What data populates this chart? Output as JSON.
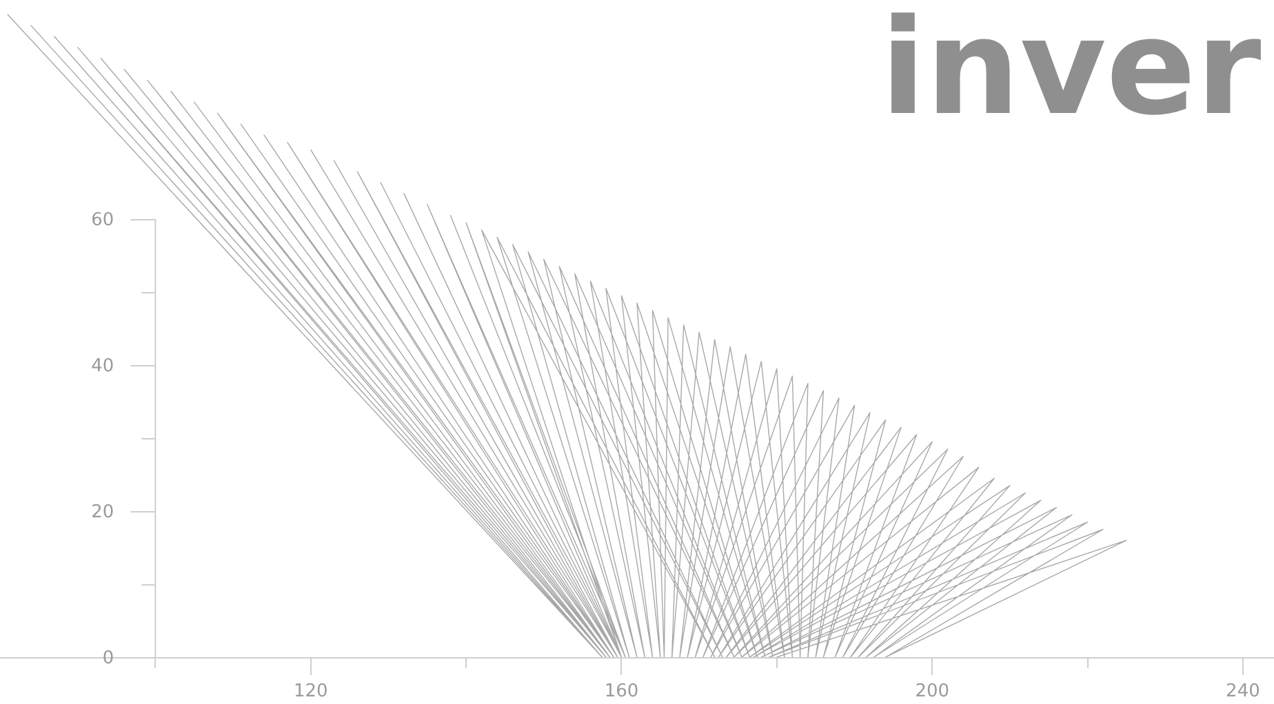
{
  "chart_data": {
    "type": "line",
    "title": "inver",
    "x": [
      81,
      157.5,
      84,
      157.5,
      87,
      157.5,
      90,
      158,
      93,
      158,
      96,
      158,
      99,
      158.5,
      102,
      158.5,
      105,
      158.5,
      108,
      159,
      111,
      159,
      114,
      159,
      117,
      159.5,
      120,
      159.5,
      123,
      159.5,
      126,
      160,
      129,
      160,
      132,
      160,
      135,
      160.5,
      138,
      160.5,
      140,
      160,
      142,
      172,
      144,
      161,
      146,
      173,
      148,
      162,
      150,
      174.5,
      152,
      163,
      154,
      175.5,
      156,
      164,
      158,
      176.5,
      160,
      165,
      162,
      177.5,
      164,
      165.5,
      166,
      178.5,
      168,
      166.5,
      170,
      179.5,
      172,
      167.5,
      174,
      181,
      176,
      168.5,
      178,
      182,
      180,
      169.5,
      182,
      183,
      184,
      170.5,
      186,
      184,
      188,
      171.5,
      190,
      185,
      192,
      172.5,
      194,
      186,
      196,
      173.5,
      198,
      187.5,
      200,
      174.5,
      202,
      188.5,
      204,
      175.5,
      206,
      189.5,
      208,
      176.5,
      210,
      190.5,
      212,
      177,
      214,
      191.5,
      216,
      178,
      218,
      192.5,
      220,
      179,
      222,
      194,
      225,
      180
    ],
    "values": [
      88,
      0,
      86.5,
      0,
      85,
      0,
      83.5,
      0,
      82,
      0,
      80.5,
      0,
      79,
      0,
      77.5,
      0,
      76,
      0,
      74.5,
      0,
      73,
      0,
      71.5,
      0,
      70.5,
      0,
      69.5,
      0,
      68,
      0,
      66.5,
      0,
      65,
      0,
      63.5,
      0,
      62,
      0,
      60.5,
      0,
      59.5,
      0,
      58.5,
      0,
      57.5,
      0,
      56.5,
      0,
      55.5,
      0,
      54.5,
      0,
      53.5,
      0,
      52.5,
      0,
      51.5,
      0,
      50.5,
      0,
      49.5,
      0,
      48.5,
      0,
      47.5,
      0,
      46.5,
      0,
      45.5,
      0,
      44.5,
      0,
      43.5,
      0,
      42.5,
      0,
      41.5,
      0,
      40.5,
      0,
      39.5,
      0,
      38.5,
      0,
      37.5,
      0,
      36.5,
      0,
      35.5,
      0,
      34.5,
      0,
      33.5,
      0,
      32.5,
      0,
      31.5,
      0,
      30.5,
      0,
      29.5,
      0,
      28.5,
      0,
      27.5,
      0,
      26,
      0,
      24.5,
      0,
      23.5,
      0,
      22.5,
      0,
      21.5,
      0,
      20.5,
      0,
      19.5,
      0,
      18.5,
      0,
      17.5,
      0,
      16,
      0
    ],
    "color": "#a8a8a8",
    "xlim": [
      80,
      244
    ],
    "ylim": [
      0,
      90
    ],
    "xticks": [
      {
        "value": 100,
        "label": null
      },
      120,
      {
        "value": 140,
        "label": null
      },
      160,
      {
        "value": 180,
        "label": null
      },
      200,
      {
        "value": 220,
        "label": null
      },
      240
    ],
    "yticks": [
      0,
      20,
      40,
      60
    ],
    "grid": false,
    "marker": "none",
    "line_style": "solid"
  }
}
